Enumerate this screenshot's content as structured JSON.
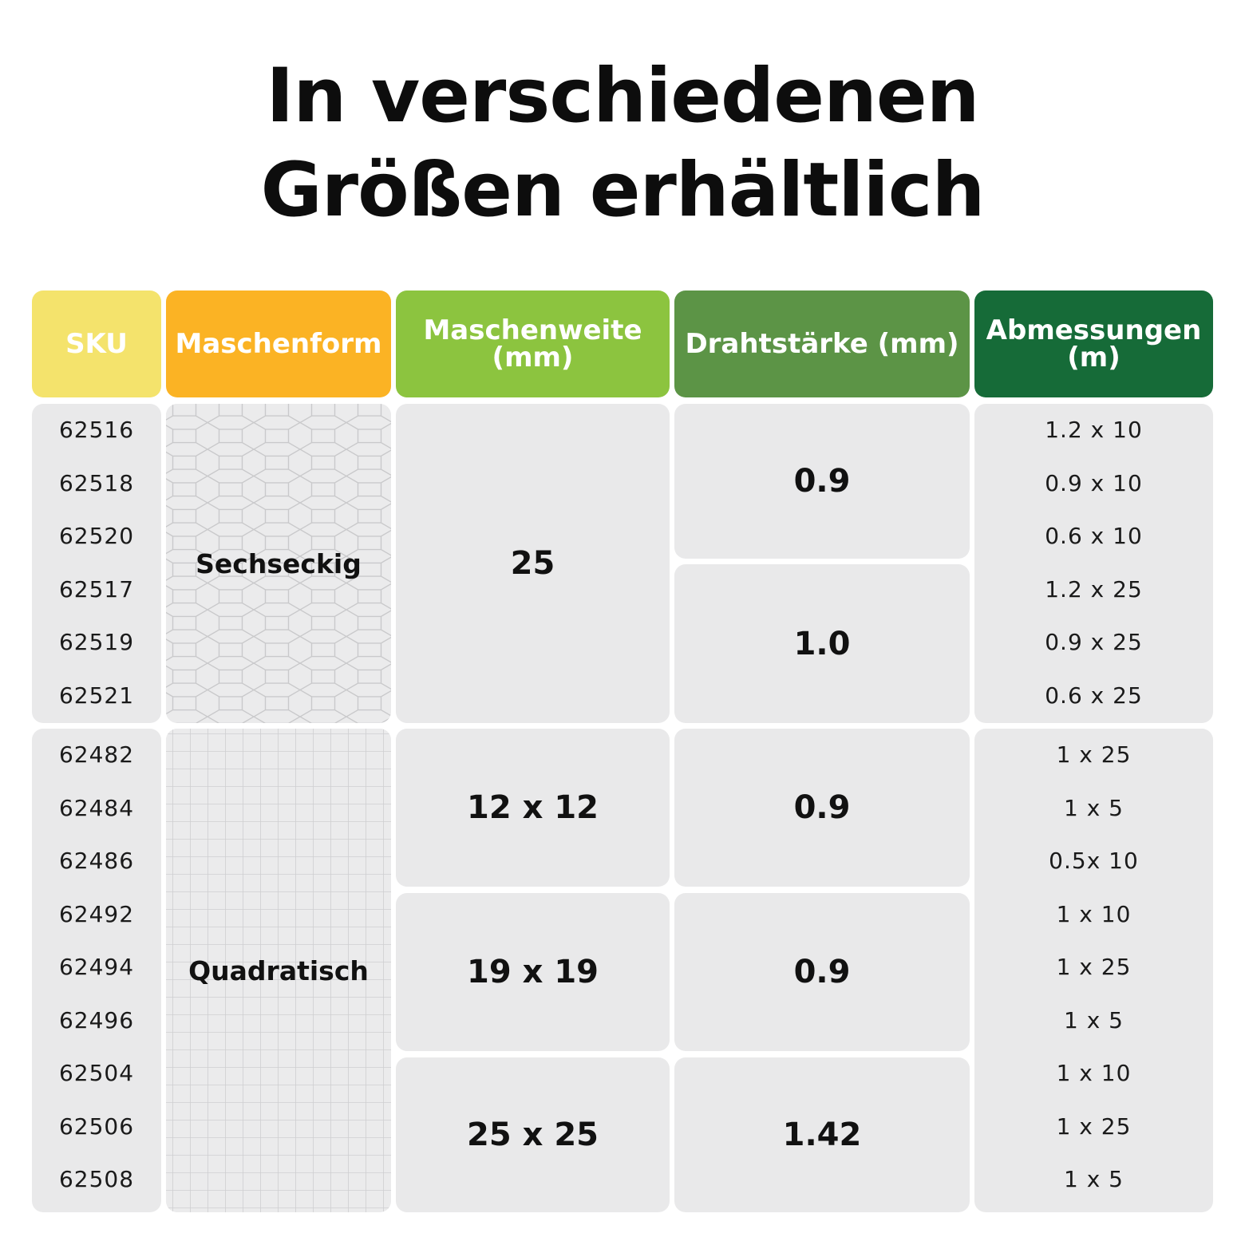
{
  "title": {
    "line1": "In verschiedenen",
    "line2": "Größen erhältlich"
  },
  "colors": {
    "sku": "#f4e36c",
    "maschenform": "#fbb324",
    "maschenweite": "#8cc43f",
    "drahtstaerke": "#5c9446",
    "abmessungen": "#166b38",
    "cell": "#e9e9ea"
  },
  "headers": {
    "sku": "SKU",
    "maschenform": "Maschenform",
    "maschenweite_line1": "Maschenweite",
    "maschenweite_line2": "(mm)",
    "drahtstaerke": "Drahtstärke (mm)",
    "abmessungen_line1": "Abmessungen",
    "abmessungen_line2": "(m)"
  },
  "groups": [
    {
      "maschenform": "Sechseckig",
      "pattern_icon": "hexagon-mesh",
      "skus": [
        "62516",
        "62518",
        "62520",
        "62517",
        "62519",
        "62521"
      ],
      "maschenweite": [
        "25"
      ],
      "drahtstaerke": [
        "0.9",
        "1.0"
      ],
      "abmessungen": [
        "1.2 x 10",
        "0.9 x 10",
        "0.6 x 10",
        "1.2 x 25",
        "0.9 x 25",
        "0.6 x 25"
      ]
    },
    {
      "maschenform": "Quadratisch",
      "pattern_icon": "square-mesh",
      "skus": [
        "62482",
        "62484",
        "62486",
        "62492",
        "62494",
        "62496",
        "62504",
        "62506",
        "62508"
      ],
      "maschenweite": [
        "12 x 12",
        "19 x 19",
        "25 x 25"
      ],
      "drahtstaerke": [
        "0.9",
        "0.9",
        "1.42"
      ],
      "abmessungen": [
        "1 x 25",
        "1 x 5",
        "0.5x 10",
        "1 x 10",
        "1 x 25",
        "1 x 5",
        "1 x 10",
        "1 x 25",
        "1 x 5"
      ]
    }
  ]
}
